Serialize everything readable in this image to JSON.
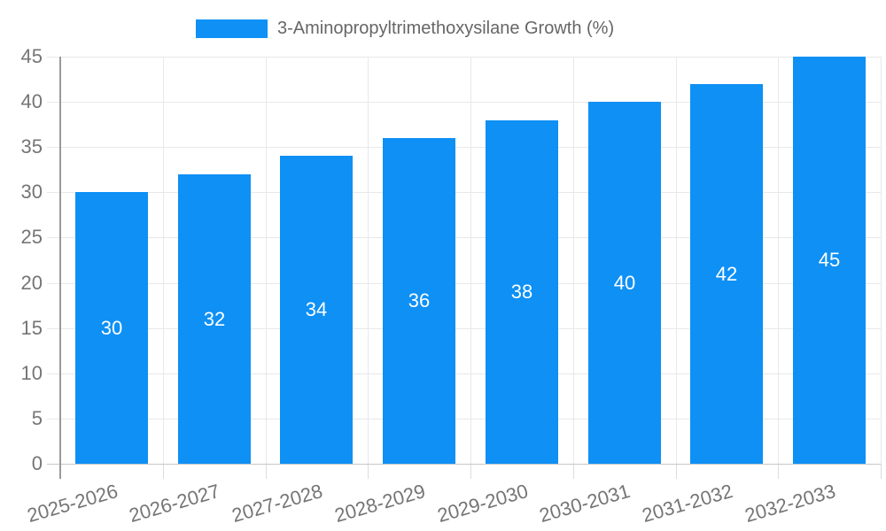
{
  "legend": {
    "label": "3-Aminopropyltrimethoxysilane Growth (%)"
  },
  "colors": {
    "bar": "#0E90F5",
    "legend_text": "#666666",
    "axis_label_text": "#757575",
    "value_label_text": "#ffffff",
    "y_axis_line": "#999999",
    "x_axis_line": "#c6c6c6",
    "gridline": "#e8e8e8",
    "x_tick": "#dcdcdc",
    "background": "#ffffff"
  },
  "chart_data": {
    "type": "bar",
    "title": "",
    "series_name": "3-Aminopropyltrimethoxysilane Growth (%)",
    "categories": [
      "2025-2026",
      "2026-2027",
      "2027-2028",
      "2028-2029",
      "2029-2030",
      "2030-2031",
      "2031-2032",
      "2032-2033"
    ],
    "values": [
      30,
      32,
      34,
      36,
      38,
      40,
      42,
      45
    ],
    "bar_value_labels": [
      "30",
      "32",
      "34",
      "36",
      "38",
      "40",
      "42",
      "45"
    ],
    "ylabel": "",
    "xlabel": "",
    "ylim": [
      0,
      45
    ],
    "ytick_step": 5,
    "ytick_labels": [
      "0",
      "5",
      "10",
      "15",
      "20",
      "25",
      "30",
      "35",
      "40",
      "45"
    ],
    "grid": true,
    "legend_position": "top-center",
    "x_label_rotation_deg": -16
  }
}
